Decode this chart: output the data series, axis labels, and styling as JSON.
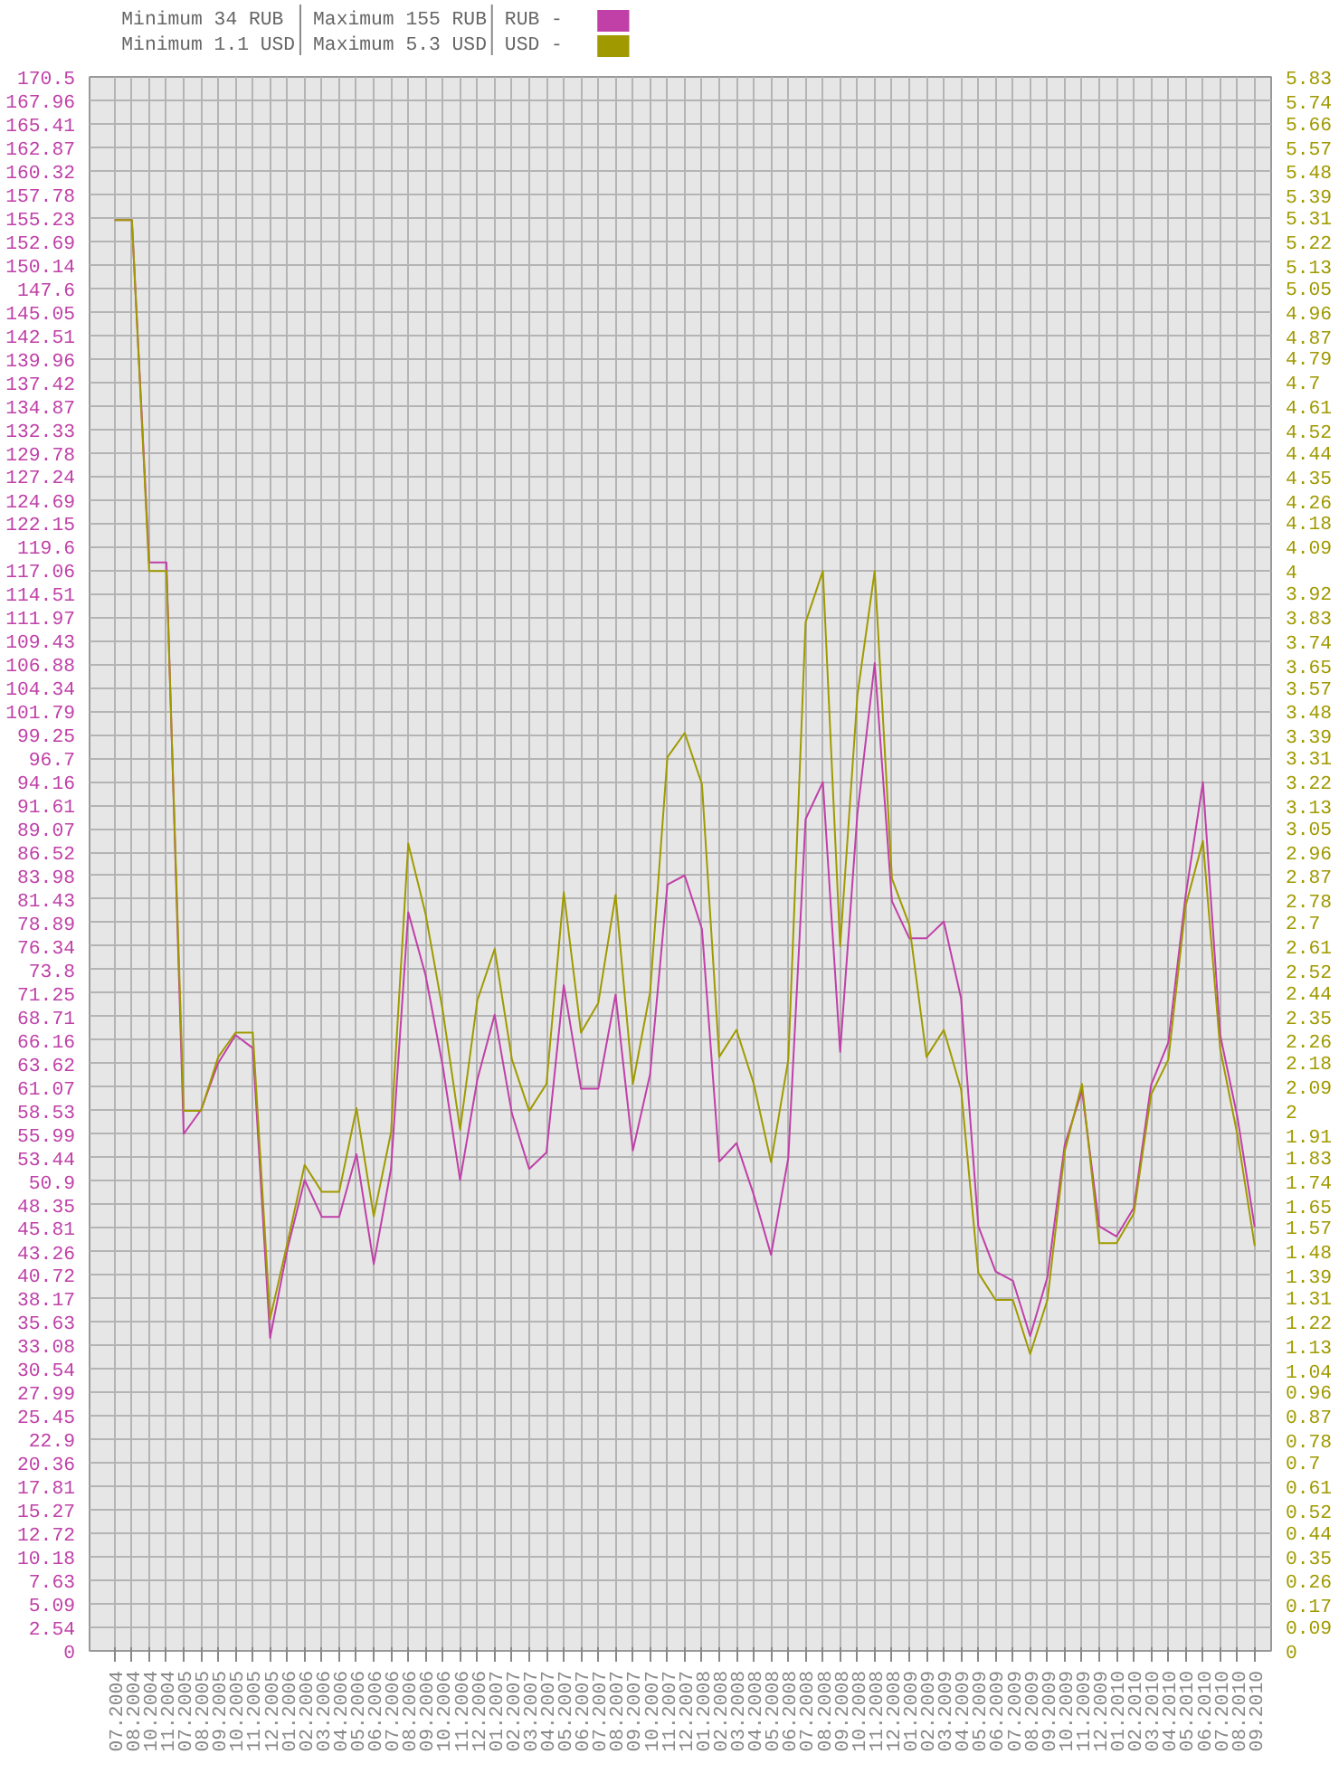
{
  "chart_data": {
    "type": "line",
    "annotations": [
      "Minimum 34 RUB",
      "Minimum 1.1 USD",
      "Maximum 155 RUB",
      "Maximum 5.3 USD"
    ],
    "categories": [
      "07.2004",
      "08.2004",
      "10.2004",
      "11.2004",
      "07.2005",
      "08.2005",
      "09.2005",
      "10.2005",
      "11.2005",
      "12.2005",
      "01.2006",
      "02.2006",
      "03.2006",
      "04.2006",
      "05.2006",
      "06.2006",
      "07.2006",
      "08.2006",
      "09.2006",
      "10.2006",
      "11.2006",
      "12.2006",
      "01.2007",
      "02.2007",
      "03.2007",
      "04.2007",
      "05.2007",
      "06.2007",
      "07.2007",
      "08.2007",
      "09.2007",
      "10.2007",
      "11.2007",
      "12.2007",
      "01.2008",
      "02.2008",
      "03.2008",
      "04.2008",
      "05.2008",
      "06.2008",
      "07.2008",
      "08.2008",
      "09.2008",
      "10.2008",
      "11.2008",
      "12.2008",
      "01.2009",
      "02.2009",
      "03.2009",
      "04.2009",
      "05.2009",
      "06.2009",
      "07.2009",
      "08.2009",
      "09.2009",
      "10.2009",
      "11.2009",
      "12.2009",
      "01.2010",
      "02.2010",
      "03.2010",
      "04.2010",
      "05.2010",
      "06.2010",
      "07.2010",
      "08.2010",
      "09.2010"
    ],
    "series": [
      {
        "name": "RUB -",
        "color": "#c040a8",
        "values": [
          155,
          155,
          117.9,
          117.9,
          56.0,
          58.6,
          63.7,
          66.7,
          65.3,
          33.9,
          43.5,
          51.0,
          47.0,
          47.0,
          53.8,
          41.9,
          52.2,
          80.0,
          73.2,
          63.3,
          51.0,
          61.9,
          68.9,
          58.2,
          52.2,
          54.0,
          72.1,
          60.9,
          60.9,
          71.1,
          54.2,
          62.5,
          83.0,
          84.0,
          78.2,
          53.0,
          55.0,
          49.4,
          42.9,
          53.4,
          90.1,
          94.1,
          64.9,
          90.7,
          107.0,
          81.2,
          77.2,
          77.2,
          79.0,
          70.7,
          46.0,
          41.1,
          40.1,
          34.1,
          40.5,
          54.8,
          60.7,
          46.0,
          44.9,
          48.0,
          61.3,
          65.9,
          81.8,
          94.1,
          66.7,
          57.8,
          45.9
        ]
      },
      {
        "name": "USD -",
        "color": "#a09a00",
        "axis": "y2",
        "values": [
          5.3,
          5.3,
          4.0,
          4.0,
          2.0,
          2.0,
          2.2,
          2.29,
          2.29,
          1.23,
          1.51,
          1.8,
          1.7,
          1.7,
          2.01,
          1.61,
          1.92,
          2.99,
          2.73,
          2.37,
          1.93,
          2.41,
          2.6,
          2.19,
          2.0,
          2.1,
          2.81,
          2.29,
          2.4,
          2.8,
          2.1,
          2.44,
          3.31,
          3.4,
          3.21,
          2.2,
          2.3,
          2.1,
          1.81,
          2.19,
          3.81,
          4.0,
          2.61,
          3.54,
          4.0,
          2.86,
          2.69,
          2.2,
          2.3,
          2.08,
          1.4,
          1.3,
          1.3,
          1.1,
          1.3,
          1.85,
          2.1,
          1.51,
          1.51,
          1.62,
          2.06,
          2.19,
          2.76,
          3.0,
          2.23,
          1.91,
          1.5
        ]
      }
    ],
    "ylim": [
      0,
      170.5
    ],
    "yticks": [
      0,
      2.54,
      5.09,
      7.63,
      10.18,
      12.72,
      15.27,
      17.81,
      20.36,
      22.9,
      25.45,
      27.99,
      30.54,
      33.08,
      35.63,
      38.17,
      40.72,
      43.26,
      45.81,
      48.35,
      50.9,
      53.44,
      55.99,
      58.53,
      61.07,
      63.62,
      66.16,
      68.71,
      71.25,
      73.8,
      76.34,
      78.89,
      81.43,
      83.98,
      86.52,
      89.07,
      91.61,
      94.16,
      96.7,
      99.25,
      101.79,
      104.34,
      106.88,
      109.43,
      111.97,
      114.51,
      117.06,
      119.6,
      122.15,
      124.69,
      127.24,
      129.78,
      132.33,
      134.87,
      137.42,
      139.96,
      142.51,
      145.05,
      147.6,
      150.14,
      152.69,
      155.23,
      157.78,
      160.32,
      162.87,
      165.41,
      167.96,
      170.5
    ],
    "y2lim": [
      0,
      5.83
    ],
    "y2ticks": [
      0,
      0.09,
      0.17,
      0.26,
      0.35,
      0.44,
      0.52,
      0.61,
      0.7,
      0.78,
      0.87,
      0.96,
      1.04,
      1.13,
      1.22,
      1.31,
      1.39,
      1.48,
      1.57,
      1.65,
      1.74,
      1.83,
      1.91,
      2,
      2.09,
      2.18,
      2.26,
      2.35,
      2.44,
      2.52,
      2.61,
      2.7,
      2.78,
      2.87,
      2.96,
      3.05,
      3.13,
      3.22,
      3.31,
      3.39,
      3.48,
      3.57,
      3.65,
      3.74,
      3.83,
      3.92,
      4,
      4.09,
      4.18,
      4.26,
      4.35,
      4.44,
      4.52,
      4.61,
      4.7,
      4.79,
      4.87,
      4.96,
      5.05,
      5.13,
      5.22,
      5.31,
      5.39,
      5.48,
      5.57,
      5.66,
      5.74,
      5.83
    ],
    "grid": true,
    "legend": "top",
    "marker": "none",
    "line_style": "solid"
  }
}
